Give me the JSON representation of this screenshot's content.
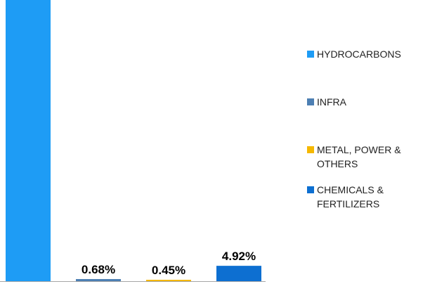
{
  "chart_data": {
    "type": "bar",
    "categories": [
      "HYDROCARBONS",
      "INFRA",
      "METAL, POWER & OTHERS",
      "CHEMICALS & FERTILIZERS"
    ],
    "values": [
      93.95,
      0.68,
      0.45,
      4.92
    ],
    "value_labels": [
      null,
      "0.68%",
      "0.45%",
      "4.92%"
    ],
    "colors": [
      "#1e9cf5",
      "#4d7fb3",
      "#f5b800",
      "#0d6fd1"
    ],
    "ylim": [
      0,
      90
    ]
  }
}
